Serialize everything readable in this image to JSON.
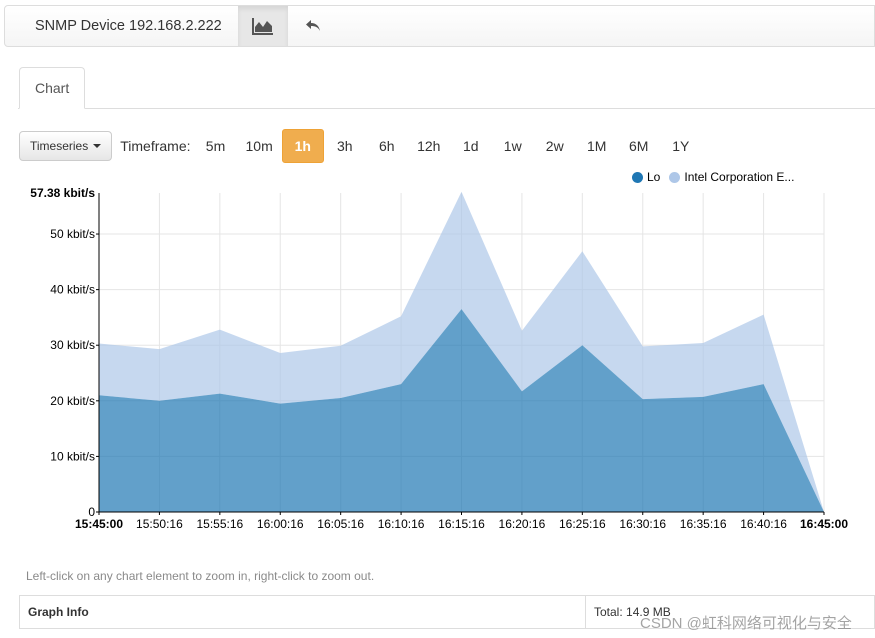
{
  "toolbar": {
    "title": "SNMP Device 192.168.2.222",
    "chart_icon": "area-chart-icon",
    "back_icon": "reply-arrow-icon"
  },
  "tabs": [
    {
      "label": "Chart",
      "active": true
    }
  ],
  "controls": {
    "view_button": "Timeseries",
    "timeframe_label": "Timeframe:",
    "timeframes": [
      "5m",
      "10m",
      "1h",
      "3h",
      "6h",
      "12h",
      "1d",
      "1w",
      "2w",
      "1M",
      "6M",
      "1Y"
    ],
    "active_timeframe": "1h"
  },
  "colors": {
    "accent": "#f0ad4e",
    "lo": "#1f77b4",
    "intel": "#aec7e8"
  },
  "chart_data": {
    "type": "area",
    "stacked": true,
    "x": [
      "15:45:00",
      "15:50:16",
      "15:55:16",
      "16:00:16",
      "16:05:16",
      "16:10:16",
      "16:15:16",
      "16:20:16",
      "16:25:16",
      "16:30:16",
      "16:35:16",
      "16:40:16",
      "16:45:00"
    ],
    "x_bold_ticks": [
      "15:45:00",
      "16:45:00"
    ],
    "y_ticks": [
      "0",
      "10 kbit/s",
      "20 kbit/s",
      "30 kbit/s",
      "40 kbit/s",
      "50 kbit/s"
    ],
    "y_max_label": "57.38 kbit/s",
    "ylim": [
      0,
      57.38
    ],
    "grid": true,
    "legend_position": "top-right",
    "series": [
      {
        "name": "Lo",
        "color": "#1f77b4",
        "values": [
          21,
          20,
          21.3,
          19.5,
          20.5,
          23,
          36.5,
          21.7,
          30,
          20.3,
          20.7,
          23,
          0
        ]
      },
      {
        "name": "Intel Corporation E...",
        "color": "#aec7e8",
        "values": [
          9.3,
          9.3,
          11.5,
          9.1,
          9.4,
          12.2,
          21.1,
          10.9,
          16.9,
          9.5,
          9.7,
          12.5,
          0
        ]
      }
    ]
  },
  "hint": "Left-click on any chart element to zoom in, right-click to zoom out.",
  "info": {
    "title": "Graph Info",
    "total": "Total: 14.9 MB"
  },
  "watermark": "CSDN @虹科网络可视化与安全"
}
